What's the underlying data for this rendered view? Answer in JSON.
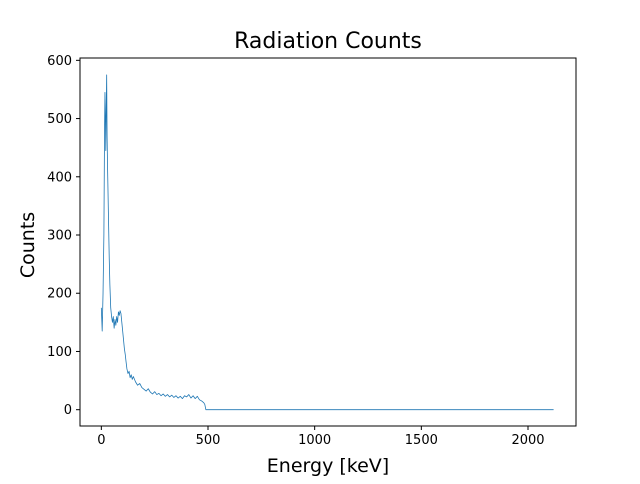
{
  "chart_data": {
    "type": "line",
    "title": "Radiation Counts",
    "xlabel": "Energy [keV]",
    "ylabel": "Counts",
    "xlim": [
      -100,
      2225
    ],
    "ylim": [
      -28,
      604
    ],
    "xticks": [
      0,
      500,
      1000,
      1500,
      2000
    ],
    "yticks": [
      0,
      100,
      200,
      300,
      400,
      500,
      600
    ],
    "grid": false,
    "series": [
      {
        "color": "#1f77b4",
        "points": [
          [
            0,
            175
          ],
          [
            4,
            135
          ],
          [
            8,
            200
          ],
          [
            12,
            300
          ],
          [
            15,
            480
          ],
          [
            17,
            545
          ],
          [
            19,
            500
          ],
          [
            21,
            445
          ],
          [
            23,
            520
          ],
          [
            25,
            575
          ],
          [
            27,
            470
          ],
          [
            29,
            420
          ],
          [
            31,
            380
          ],
          [
            33,
            340
          ],
          [
            35,
            300
          ],
          [
            37,
            260
          ],
          [
            40,
            215
          ],
          [
            44,
            175
          ],
          [
            48,
            160
          ],
          [
            52,
            150
          ],
          [
            56,
            160
          ],
          [
            60,
            140
          ],
          [
            64,
            155
          ],
          [
            68,
            145
          ],
          [
            72,
            160
          ],
          [
            76,
            150
          ],
          [
            80,
            168
          ],
          [
            84,
            162
          ],
          [
            88,
            170
          ],
          [
            92,
            165
          ],
          [
            96,
            150
          ],
          [
            100,
            135
          ],
          [
            104,
            120
          ],
          [
            108,
            105
          ],
          [
            112,
            95
          ],
          [
            116,
            82
          ],
          [
            120,
            70
          ],
          [
            125,
            62
          ],
          [
            130,
            66
          ],
          [
            135,
            55
          ],
          [
            140,
            60
          ],
          [
            145,
            52
          ],
          [
            150,
            57
          ],
          [
            160,
            48
          ],
          [
            170,
            42
          ],
          [
            180,
            45
          ],
          [
            190,
            38
          ],
          [
            200,
            35
          ],
          [
            210,
            32
          ],
          [
            220,
            36
          ],
          [
            230,
            30
          ],
          [
            240,
            27
          ],
          [
            250,
            31
          ],
          [
            260,
            26
          ],
          [
            270,
            28
          ],
          [
            280,
            24
          ],
          [
            290,
            27
          ],
          [
            300,
            23
          ],
          [
            310,
            26
          ],
          [
            320,
            22
          ],
          [
            330,
            25
          ],
          [
            340,
            21
          ],
          [
            350,
            24
          ],
          [
            360,
            20
          ],
          [
            370,
            23
          ],
          [
            380,
            19
          ],
          [
            390,
            24
          ],
          [
            400,
            22
          ],
          [
            410,
            26
          ],
          [
            420,
            20
          ],
          [
            430,
            24
          ],
          [
            440,
            19
          ],
          [
            450,
            23
          ],
          [
            460,
            17
          ],
          [
            470,
            15
          ],
          [
            480,
            12
          ],
          [
            485,
            9
          ],
          [
            490,
            0
          ],
          [
            500,
            0
          ],
          [
            1000,
            0
          ],
          [
            1500,
            0
          ],
          [
            2000,
            0
          ],
          [
            2120,
            0
          ]
        ]
      }
    ]
  }
}
